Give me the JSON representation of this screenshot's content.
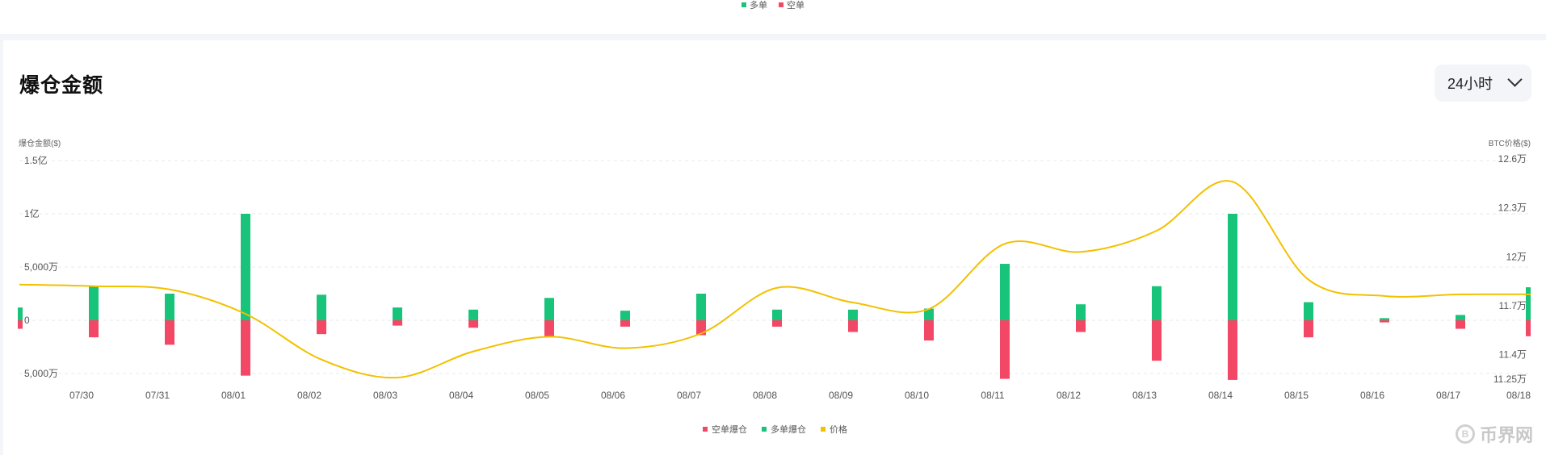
{
  "top_legend": [
    {
      "label": "多单",
      "color": "#18c37a"
    },
    {
      "label": "空单",
      "color": "#f24866"
    }
  ],
  "section": {
    "title": "爆仓金额",
    "range_select": {
      "value": "24小时"
    }
  },
  "chart_data": {
    "type": "bar",
    "left_axis_title": "爆仓金额($)",
    "right_axis_title": "BTC价格($)",
    "categories": [
      "07/30",
      "07/31",
      "08/01",
      "08/02",
      "08/03",
      "08/04",
      "08/05",
      "08/06",
      "08/07",
      "08/08",
      "08/09",
      "08/10",
      "08/11",
      "08/12",
      "08/13",
      "08/14",
      "08/15",
      "08/16",
      "08/17",
      "08/18"
    ],
    "left_ticks": [
      {
        "value": 150000000,
        "label": "1.5亿"
      },
      {
        "value": 100000000,
        "label": "1亿"
      },
      {
        "value": 50000000,
        "label": "5,000万"
      },
      {
        "value": 0,
        "label": "0"
      },
      {
        "value": -50000000,
        "label": "5,000万"
      }
    ],
    "right_ticks": [
      {
        "value": 126000,
        "label": "12.6万"
      },
      {
        "value": 123000,
        "label": "12.3万"
      },
      {
        "value": 120000,
        "label": "12万"
      },
      {
        "value": 117000,
        "label": "11.7万"
      },
      {
        "value": 114000,
        "label": "11.4万"
      },
      {
        "value": 112500,
        "label": "11.25万"
      }
    ],
    "left_range": [
      -55000000,
      150000000
    ],
    "right_range": [
      112500,
      126000
    ],
    "series": [
      {
        "name": "空单爆仓",
        "color": "#f24866",
        "values": [
          -16000000,
          -23000000,
          -52000000,
          -13000000,
          -5000000,
          -7000000,
          -15000000,
          -6000000,
          -14000000,
          -6000000,
          -11000000,
          -19000000,
          -55000000,
          -11000000,
          -38000000,
          -56000000,
          -16000000,
          -2000000,
          -8000000,
          -15000000
        ]
      },
      {
        "name": "多单爆仓",
        "color": "#18c37a",
        "values": [
          32000000,
          25000000,
          100000000,
          24000000,
          12000000,
          10000000,
          21000000,
          9000000,
          25000000,
          10000000,
          10000000,
          11000000,
          53000000,
          15000000,
          32000000,
          100000000,
          17000000,
          2000000,
          5000000,
          31000000
        ]
      },
      {
        "name": "价格",
        "color": "#f2c100",
        "values": [
          118200,
          118000,
          116500,
          113700,
          112600,
          114200,
          115100,
          114400,
          115300,
          118100,
          117200,
          116800,
          120800,
          120300,
          121600,
          124600,
          118600,
          117600,
          117700,
          117700
        ]
      }
    ],
    "edge_bar": {
      "long": 12000000,
      "short": -8000000
    },
    "price_start": 118300,
    "legend_placement": "bottom-center",
    "grid": "horizontal-dashed"
  },
  "watermark": {
    "text": "币界网",
    "icon": "coin-b-icon"
  }
}
